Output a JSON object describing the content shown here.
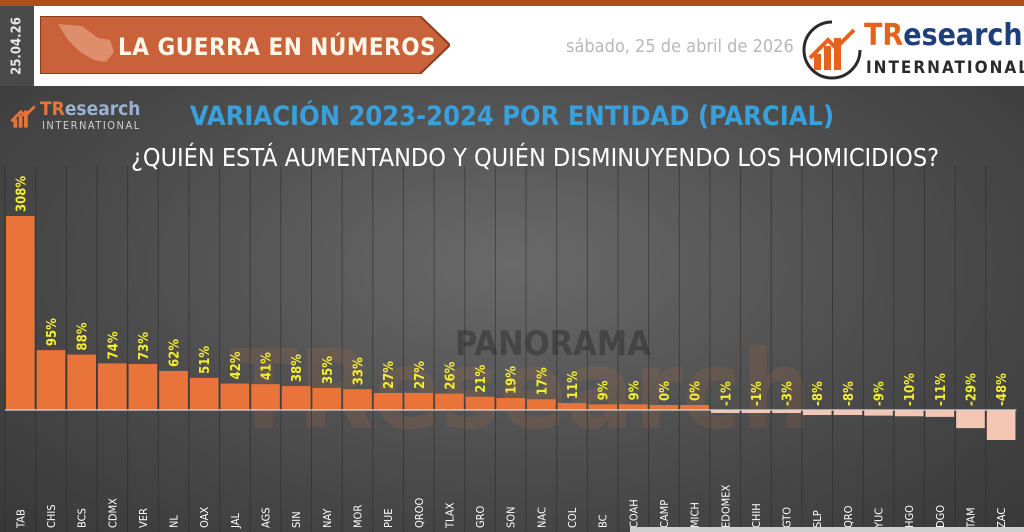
{
  "header": {
    "date_stamp": "25.04.26",
    "banner_label": "LA GUERRA EN NÚMEROS",
    "date_text": "sábado, 25 de abril de 2026",
    "logo_brand_accent": "TR",
    "logo_brand_rest": "esearch",
    "logo_sub": "INTERNATIONAL"
  },
  "watermarks": {
    "panorama": "PANORAMA",
    "brand": "TResearch"
  },
  "colors": {
    "accent": "#e5621d",
    "title": "#3aa0dc",
    "value_label": "#f4ee30",
    "bar_positive": "#e8743a",
    "bar_negative": "#f5c6b4",
    "panel_bg": "#4c4c4c"
  },
  "chart_data": {
    "type": "bar",
    "title": "VARIACIÓN 2023-2024 POR ENTIDAD (PARCIAL)",
    "subtitle": "¿QUIÉN ESTÁ AUMENTANDO Y QUIÉN DISMINUYENDO LOS HOMICIDIOS?",
    "categories": [
      "TAB",
      "CHIS",
      "BCS",
      "CDMX",
      "VER",
      "NL",
      "OAX",
      "JAL",
      "AGS",
      "SIN",
      "NAY",
      "MOR",
      "PUE",
      "QROO",
      "TLAX",
      "GRO",
      "SON",
      "NAC",
      "COL",
      "BC",
      "COAH",
      "CAMP",
      "MICH",
      "EDOMEX",
      "CHIH",
      "GTO",
      "SLP",
      "QRO",
      "YUC",
      "HGO",
      "DGO",
      "TAM",
      "ZAC"
    ],
    "values": [
      308,
      95,
      88,
      74,
      73,
      62,
      51,
      42,
      41,
      38,
      35,
      33,
      27,
      27,
      26,
      21,
      19,
      17,
      11,
      9,
      9,
      0,
      0,
      -1,
      -1,
      -3,
      -8,
      -8,
      -9,
      -10,
      -11,
      -29,
      -48
    ],
    "labels": [
      "308%",
      "95%",
      "88%",
      "74%",
      "73%",
      "62%",
      "51%",
      "42%",
      "41%",
      "38%",
      "35%",
      "33%",
      "27%",
      "27%",
      "26%",
      "21%",
      "19%",
      "17%",
      "11%",
      "9%",
      "9%",
      "0%",
      "0%",
      "-1%",
      "-1%",
      "-3%",
      "-8%",
      "-8%",
      "-9%",
      "-10%",
      "-11%",
      "-29%",
      "-48%"
    ],
    "unit": "%",
    "grid": false,
    "legend": "none"
  }
}
